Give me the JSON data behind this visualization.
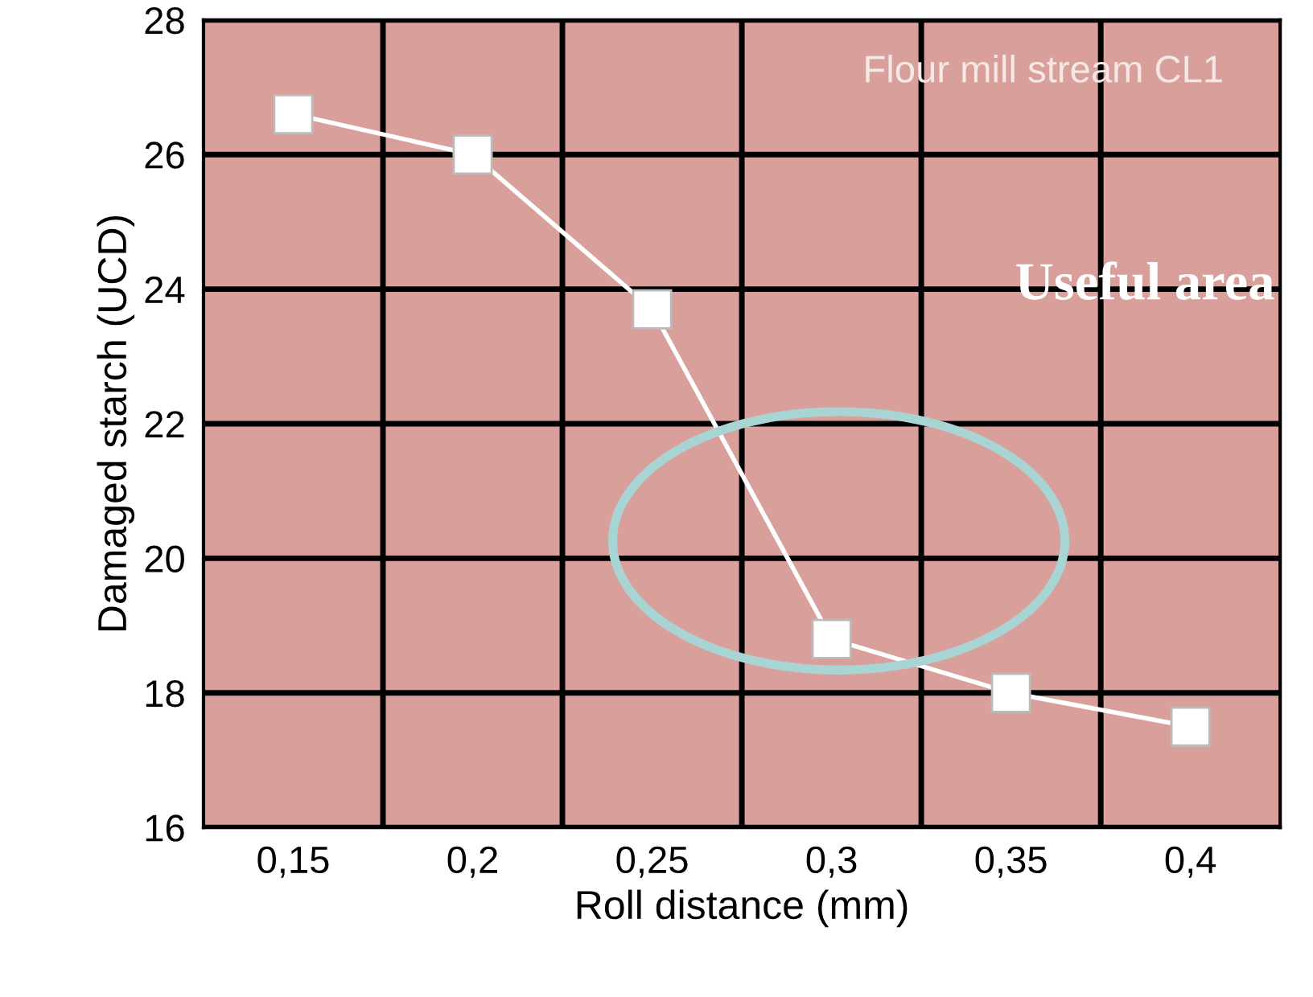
{
  "chart_data": {
    "type": "line",
    "xlabel": "Roll distance (mm)",
    "ylabel": "Damaged starch (UCD)",
    "categories": [
      "0,15",
      "0,2",
      "0,25",
      "0,3",
      "0,35",
      "0,4"
    ],
    "series": [
      {
        "color": "#ffffff",
        "values": [
          26.6,
          26.0,
          23.7,
          18.8,
          18.0,
          17.5
        ]
      }
    ],
    "ylim": [
      16,
      28
    ],
    "yticks": [
      16,
      18,
      20,
      22,
      24,
      26,
      28
    ],
    "grid": true,
    "marker": "square",
    "line_style": "solid",
    "annotations": [
      "Flour mill stream CL1",
      "Useful area"
    ]
  }
}
